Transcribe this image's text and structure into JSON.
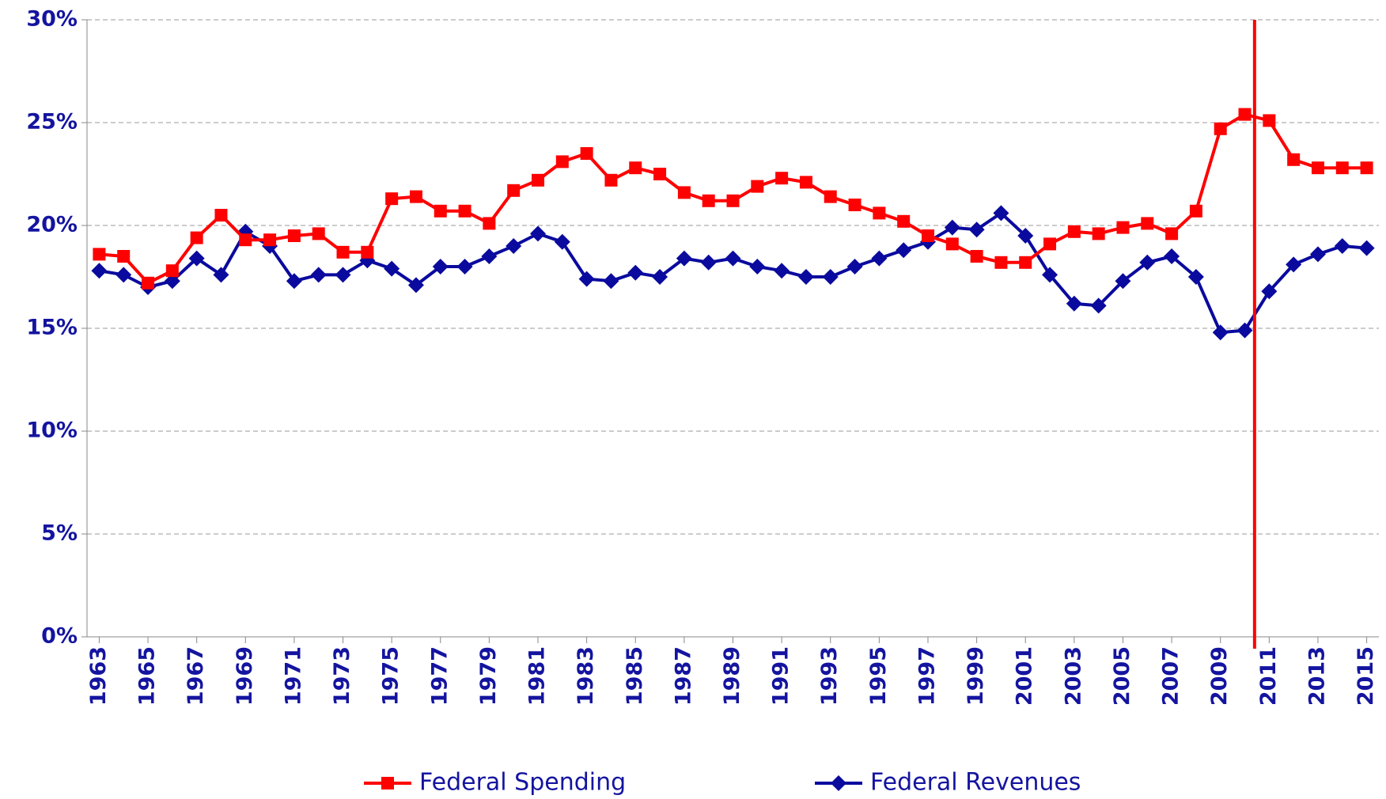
{
  "chart_data": {
    "type": "line",
    "x": [
      1963,
      1964,
      1965,
      1966,
      1967,
      1968,
      1969,
      1970,
      1971,
      1972,
      1973,
      1974,
      1975,
      1976,
      1977,
      1978,
      1979,
      1980,
      1981,
      1982,
      1983,
      1984,
      1985,
      1986,
      1987,
      1988,
      1989,
      1990,
      1991,
      1992,
      1993,
      1994,
      1995,
      1996,
      1997,
      1998,
      1999,
      2000,
      2001,
      2002,
      2003,
      2004,
      2005,
      2006,
      2007,
      2008,
      2009,
      2010,
      2011,
      2012,
      2013,
      2014,
      2015
    ],
    "series": [
      {
        "name": "Federal Spending",
        "color": "#ff0000",
        "marker": "square",
        "values": [
          18.6,
          18.5,
          17.2,
          17.8,
          19.4,
          20.5,
          19.3,
          19.3,
          19.5,
          19.6,
          18.7,
          18.7,
          21.3,
          21.4,
          20.7,
          20.7,
          20.1,
          21.7,
          22.2,
          23.1,
          23.5,
          22.2,
          22.8,
          22.5,
          21.6,
          21.2,
          21.2,
          21.9,
          22.3,
          22.1,
          21.4,
          21.0,
          20.6,
          20.2,
          19.5,
          19.1,
          18.5,
          18.2,
          18.2,
          19.1,
          19.7,
          19.6,
          19.9,
          20.1,
          19.6,
          20.7,
          24.7,
          25.4,
          25.1,
          23.2,
          22.8,
          22.8,
          22.8
        ]
      },
      {
        "name": "Federal Revenues",
        "color": "#0a0a9e",
        "marker": "diamond",
        "values": [
          17.8,
          17.6,
          17.0,
          17.3,
          18.4,
          17.6,
          19.7,
          19.0,
          17.3,
          17.6,
          17.6,
          18.3,
          17.9,
          17.1,
          18.0,
          18.0,
          18.5,
          19.0,
          19.6,
          19.2,
          17.4,
          17.3,
          17.7,
          17.5,
          18.4,
          18.2,
          18.4,
          18.0,
          17.8,
          17.5,
          17.5,
          18.0,
          18.4,
          18.8,
          19.2,
          19.9,
          19.8,
          20.6,
          19.5,
          17.6,
          16.2,
          16.1,
          17.3,
          18.2,
          18.5,
          17.5,
          14.8,
          14.9,
          16.8,
          18.1,
          18.6,
          19.0,
          18.9
        ]
      }
    ],
    "xlim": [
      1962.5,
      2015.5
    ],
    "xticks": [
      1963,
      1965,
      1967,
      1969,
      1971,
      1973,
      1975,
      1977,
      1979,
      1981,
      1983,
      1985,
      1987,
      1989,
      1991,
      1993,
      1995,
      1997,
      1999,
      2001,
      2003,
      2005,
      2007,
      2009,
      2011,
      2013,
      2015
    ],
    "ylim": [
      0,
      30
    ],
    "yticks": [
      {
        "value": 0,
        "label": "0%"
      },
      {
        "value": 5,
        "label": "5%"
      },
      {
        "value": 10,
        "label": "10%"
      },
      {
        "value": 15,
        "label": "15%"
      },
      {
        "value": 20,
        "label": "20%"
      },
      {
        "value": 25,
        "label": "25%"
      },
      {
        "value": 30,
        "label": "30%"
      }
    ],
    "grid": true,
    "legend": "bottom",
    "vertical_line": {
      "x": 2010.4,
      "color": "#ff0000"
    }
  }
}
